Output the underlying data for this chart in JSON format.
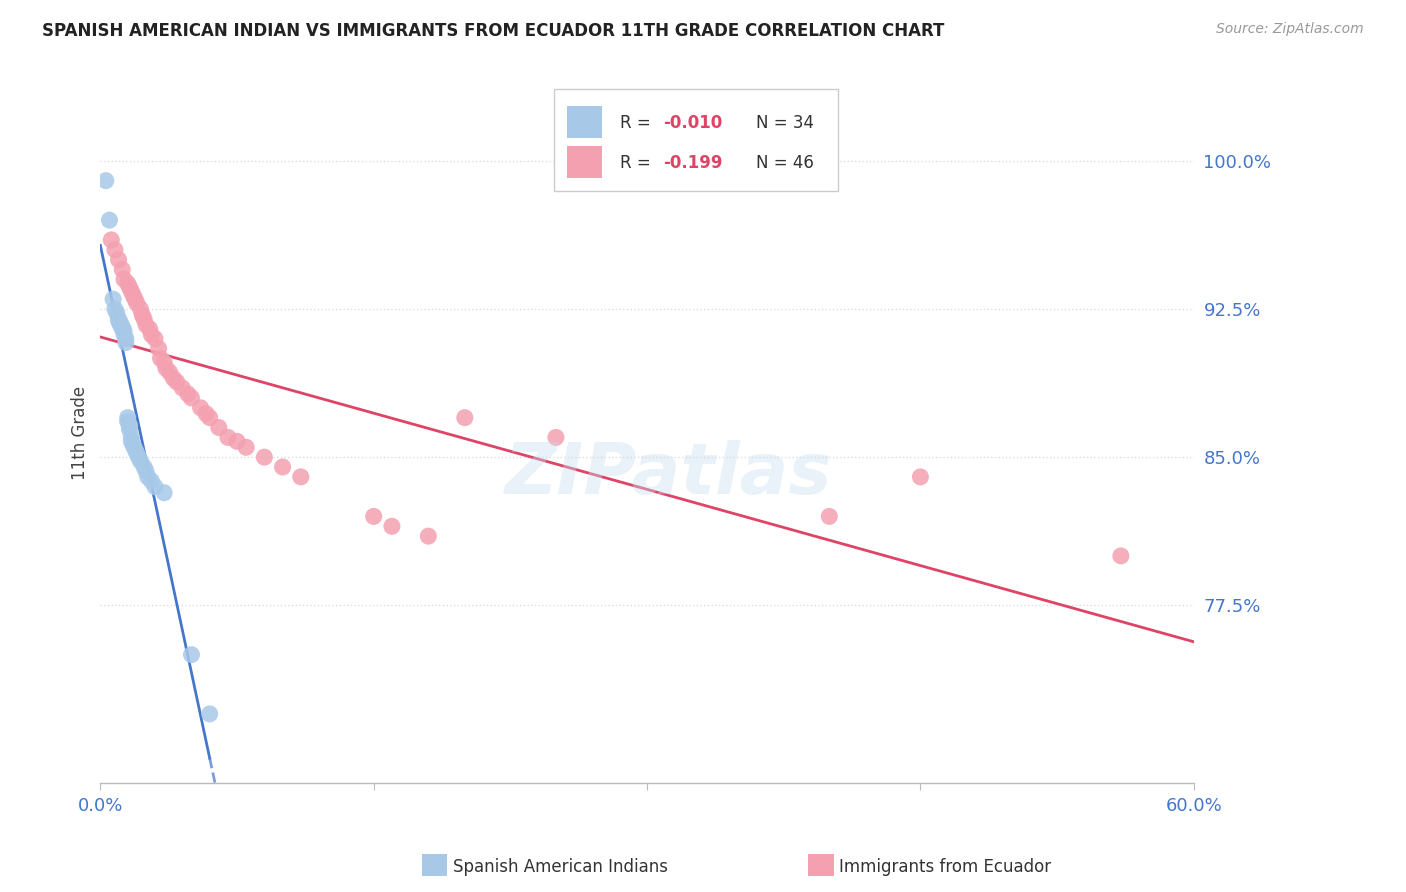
{
  "title": "SPANISH AMERICAN INDIAN VS IMMIGRANTS FROM ECUADOR 11TH GRADE CORRELATION CHART",
  "source": "Source: ZipAtlas.com",
  "ylabel": "11th Grade",
  "yticks": [
    0.775,
    0.85,
    0.925,
    1.0
  ],
  "ytick_labels": [
    "77.5%",
    "85.0%",
    "92.5%",
    "100.0%"
  ],
  "xlim": [
    0.0,
    0.6
  ],
  "ylim": [
    0.685,
    1.04
  ],
  "watermark": "ZIPatlas",
  "series1_label": "Spanish American Indians",
  "series1_R": -0.01,
  "series1_N": 34,
  "series1_color": "#a8c8e8",
  "series1_x": [
    0.003,
    0.005,
    0.007,
    0.008,
    0.009,
    0.01,
    0.01,
    0.011,
    0.011,
    0.012,
    0.012,
    0.013,
    0.013,
    0.014,
    0.014,
    0.015,
    0.015,
    0.016,
    0.016,
    0.017,
    0.017,
    0.018,
    0.019,
    0.02,
    0.021,
    0.022,
    0.024,
    0.025,
    0.026,
    0.028,
    0.03,
    0.035,
    0.05,
    0.06
  ],
  "series1_y": [
    0.99,
    0.97,
    0.93,
    0.925,
    0.923,
    0.92,
    0.919,
    0.918,
    0.917,
    0.916,
    0.915,
    0.914,
    0.912,
    0.91,
    0.908,
    0.87,
    0.868,
    0.866,
    0.864,
    0.86,
    0.858,
    0.856,
    0.854,
    0.852,
    0.85,
    0.848,
    0.845,
    0.843,
    0.84,
    0.838,
    0.835,
    0.832,
    0.75,
    0.72
  ],
  "series2_label": "Immigrants from Ecuador",
  "series2_R": -0.199,
  "series2_N": 46,
  "series2_color": "#f4a0b0",
  "series2_x": [
    0.006,
    0.008,
    0.01,
    0.012,
    0.013,
    0.015,
    0.016,
    0.017,
    0.018,
    0.019,
    0.02,
    0.022,
    0.023,
    0.024,
    0.025,
    0.027,
    0.028,
    0.03,
    0.032,
    0.033,
    0.035,
    0.036,
    0.038,
    0.04,
    0.042,
    0.045,
    0.048,
    0.05,
    0.055,
    0.058,
    0.06,
    0.065,
    0.07,
    0.075,
    0.08,
    0.09,
    0.1,
    0.11,
    0.15,
    0.16,
    0.18,
    0.2,
    0.25,
    0.4,
    0.45,
    0.56
  ],
  "series2_y": [
    0.96,
    0.955,
    0.95,
    0.945,
    0.94,
    0.938,
    0.936,
    0.934,
    0.932,
    0.93,
    0.928,
    0.925,
    0.922,
    0.92,
    0.917,
    0.915,
    0.912,
    0.91,
    0.905,
    0.9,
    0.898,
    0.895,
    0.893,
    0.89,
    0.888,
    0.885,
    0.882,
    0.88,
    0.875,
    0.872,
    0.87,
    0.865,
    0.86,
    0.858,
    0.855,
    0.85,
    0.845,
    0.84,
    0.82,
    0.815,
    0.81,
    0.87,
    0.86,
    0.82,
    0.84,
    0.8
  ],
  "trendline1_color": "#4477cc",
  "trendline2_color": "#dd4466",
  "background_color": "#ffffff",
  "grid_color": "#cccccc"
}
